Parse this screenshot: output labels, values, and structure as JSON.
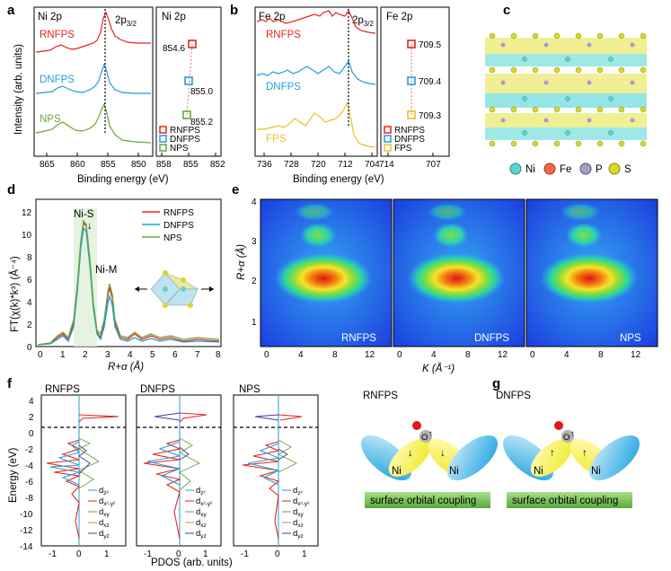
{
  "panel_labels": [
    "a",
    "b",
    "c",
    "d",
    "e",
    "f",
    "g"
  ],
  "panel_a": {
    "title": "Ni 2p",
    "peak_label": "2p",
    "peak_sub": "3/2",
    "xlabel": "Binding energy (eV)",
    "ylabel": "Intensity (arb. units)",
    "x_ticks": [
      "865",
      "860",
      "855",
      "850"
    ],
    "curves": [
      {
        "name": "RNFPS",
        "color": "#e8241c"
      },
      {
        "name": "DNFPS",
        "color": "#1f9fd8"
      },
      {
        "name": "NPS",
        "color": "#6aa63a"
      }
    ],
    "inset": {
      "title": "Ni 2p",
      "x_ticks": [
        "858",
        "855",
        "852"
      ],
      "points": [
        {
          "label": "854.6",
          "value": 854.6,
          "color": "#e8241c"
        },
        {
          "label": "855.0",
          "value": 855.0,
          "color": "#1f9fd8"
        },
        {
          "label": "855.2",
          "value": 855.2,
          "color": "#6aa63a"
        }
      ],
      "legend": [
        "RNFPS",
        "DNFPS",
        "NPS"
      ]
    }
  },
  "panel_b": {
    "title": "Fe 2p",
    "peak_label": "2p",
    "peak_sub": "3/2",
    "xlabel": "Binding energy (eV)",
    "x_ticks": [
      "736",
      "728",
      "720",
      "712",
      "704"
    ],
    "curves": [
      {
        "name": "RNFPS",
        "color": "#e8241c"
      },
      {
        "name": "DNFPS",
        "color": "#1f9fd8"
      },
      {
        "name": "FPS",
        "color": "#e6c22a"
      }
    ],
    "inset": {
      "title": "Fe 2p",
      "x_ticks": [
        "714",
        "707"
      ],
      "points": [
        {
          "label": "709.5",
          "value": 709.5,
          "color": "#e8241c"
        },
        {
          "label": "709.4",
          "value": 709.4,
          "color": "#1f9fd8"
        },
        {
          "label": "709.3",
          "value": 709.3,
          "color": "#e6c22a"
        }
      ],
      "legend": [
        "RNFPS",
        "DNFPS",
        "FPS"
      ]
    }
  },
  "panel_c": {
    "legend": [
      {
        "label": "Ni",
        "color": "#5fd3d0"
      },
      {
        "label": "Fe",
        "color": "#f06a4a"
      },
      {
        "label": "P",
        "color": "#a99cc8"
      },
      {
        "label": "S",
        "color": "#d9d72a"
      }
    ]
  },
  "panel_d": {
    "ylabel": "FT(χ(k)*k³) (Å⁻⁴)",
    "xlabel": "R+α (Å)",
    "x_ticks": [
      "0",
      "1",
      "2",
      "3",
      "4",
      "5",
      "6",
      "7",
      "8"
    ],
    "y_ticks": [
      "0",
      "2",
      "4",
      "6",
      "8",
      "10",
      "12"
    ],
    "peak1": "Ni-S",
    "peak2": "Ni-M",
    "legend": [
      {
        "name": "RNFPS",
        "color": "#e8241c"
      },
      {
        "name": "DNFPS",
        "color": "#1f9fd8"
      },
      {
        "name": "NPS",
        "color": "#6aa63a"
      }
    ]
  },
  "panel_e": {
    "ylabel": "R+α (Å)",
    "xlabel": "K (Å⁻¹)",
    "y_ticks": [
      "1",
      "2",
      "3",
      "4"
    ],
    "x_ticks": [
      "0",
      "4",
      "8",
      "12"
    ],
    "maps": [
      "RNFPS",
      "DNFPS",
      "NPS"
    ]
  },
  "panel_f": {
    "ylabel": "Energy (eV)",
    "xlabel": "PDOS (arb. units)",
    "y_ticks": [
      "4",
      "2",
      "0",
      "-2",
      "-4",
      "-6",
      "-8",
      "-10",
      "-12",
      "-14"
    ],
    "x_ticks": [
      "-1",
      "0",
      "1"
    ],
    "titles": [
      "RNFPS",
      "DNFPS",
      "NPS"
    ],
    "orbitals": [
      {
        "label": "d",
        "sub": "z²",
        "color": "#1f9fd8"
      },
      {
        "label": "d",
        "sub": "x²-y²",
        "color": "#e8241c"
      },
      {
        "label": "d",
        "sub": "xy",
        "color": "#6aa63a"
      },
      {
        "label": "d",
        "sub": "xz",
        "color": "#e08a1e"
      },
      {
        "label": "d",
        "sub": "yz",
        "color": "#3b3fa8"
      }
    ]
  },
  "panel_g": {
    "titles": [
      "RNFPS",
      "DNFPS"
    ],
    "atom": "Ni",
    "adsorbate": "O",
    "bar_text": "surface orbital coupling"
  }
}
